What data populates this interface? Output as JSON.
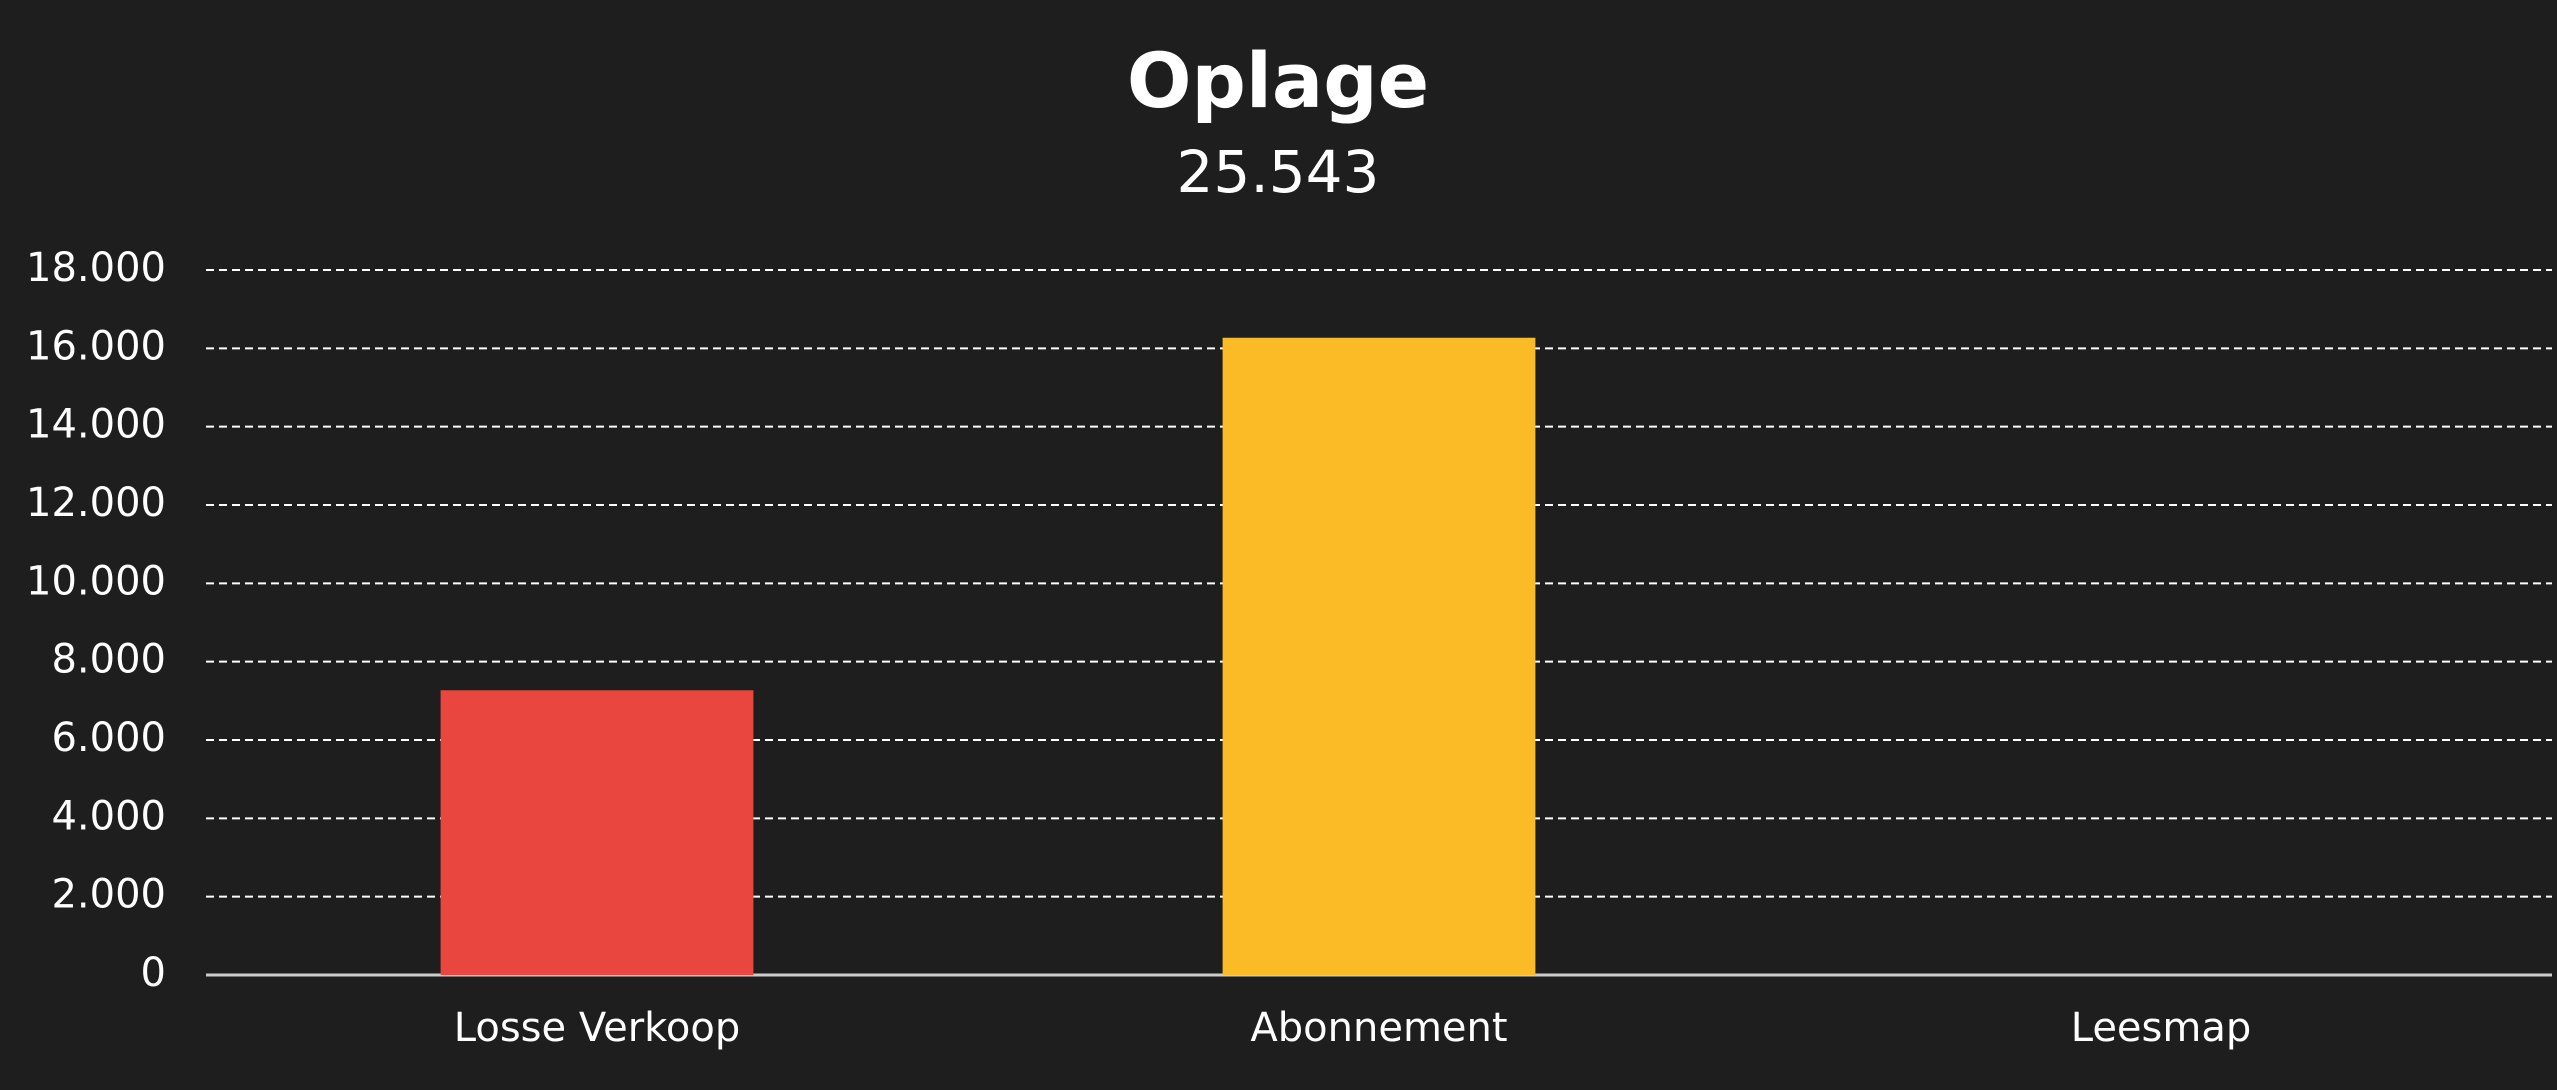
{
  "chart_data": {
    "type": "bar",
    "title": "Oplage",
    "subtitle": "25.543",
    "categories": [
      "Losse Verkoop",
      "Abonnement",
      "Leesmap"
    ],
    "values": [
      7270,
      16270,
      0
    ],
    "colors": [
      "#e8463e",
      "#fbbb26",
      "#29abe2"
    ],
    "ylim": [
      0,
      18000
    ],
    "yticks": [
      0,
      {
        "value": 2000,
        "label": "2.000"
      },
      {
        "value": 4000,
        "label": "4.000"
      },
      {
        "value": 6000,
        "label": "6.000"
      },
      {
        "value": 8000,
        "label": "8.000"
      },
      {
        "value": 10000,
        "label": "10.000"
      },
      {
        "value": 12000,
        "label": "12.000"
      },
      {
        "value": 14000,
        "label": "14.000"
      },
      {
        "value": 16000,
        "label": "16.000"
      },
      {
        "value": 18000,
        "label": "18.000"
      }
    ],
    "grid": true
  }
}
